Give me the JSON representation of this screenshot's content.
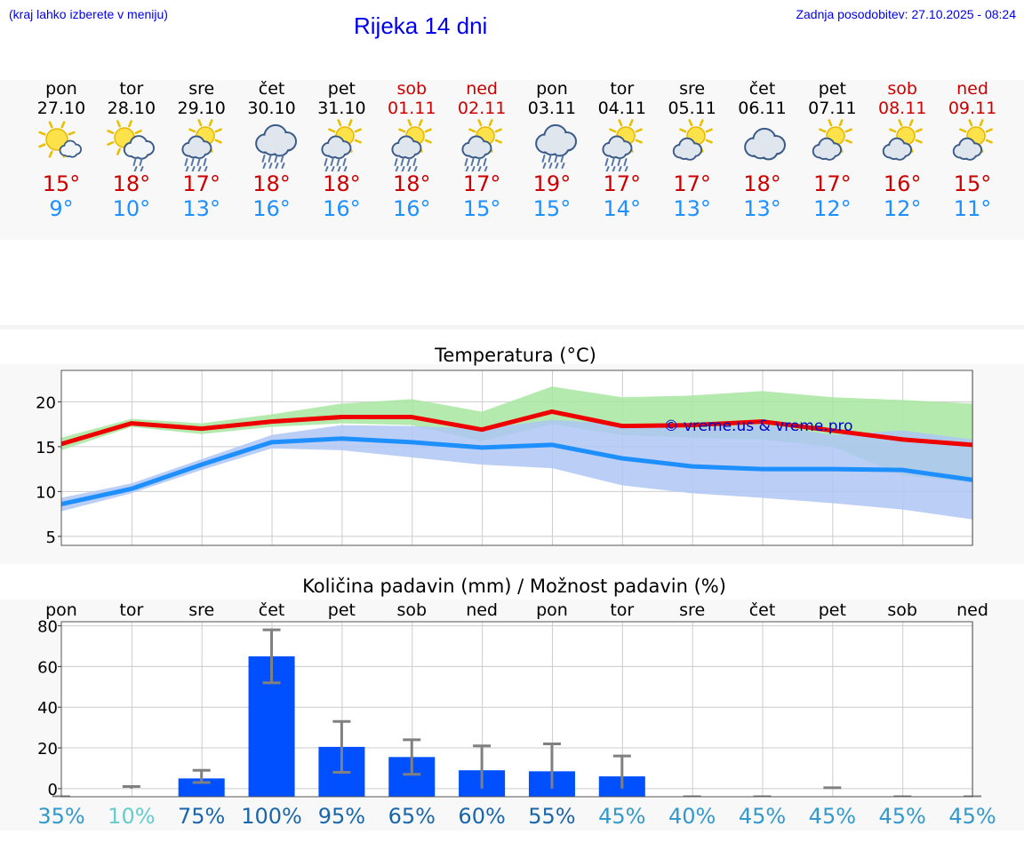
{
  "header": {
    "hint": "(kraj lahko izberete v meniju)",
    "title": "Rijeka 14 dni",
    "updated": "Zadnja posodobitev: 27.10.2025 - 08:24"
  },
  "days": [
    {
      "name": "pon",
      "date": "27.10",
      "icon": "partly-sunny-icon",
      "max": "15°",
      "min": "9°",
      "weekend": false
    },
    {
      "name": "tor",
      "date": "28.10",
      "icon": "sun-cloud-light-rain-icon",
      "max": "18°",
      "min": "10°",
      "weekend": false
    },
    {
      "name": "sre",
      "date": "29.10",
      "icon": "sun-cloud-rain-icon",
      "max": "17°",
      "min": "13°",
      "weekend": false
    },
    {
      "name": "čet",
      "date": "30.10",
      "icon": "cloud-rain-icon",
      "max": "18°",
      "min": "16°",
      "weekend": false
    },
    {
      "name": "pet",
      "date": "31.10",
      "icon": "sun-cloud-rain-icon",
      "max": "18°",
      "min": "16°",
      "weekend": false
    },
    {
      "name": "sob",
      "date": "01.11",
      "icon": "sun-cloud-rain-icon",
      "max": "18°",
      "min": "16°",
      "weekend": true
    },
    {
      "name": "ned",
      "date": "02.11",
      "icon": "sun-cloud-rain-icon",
      "max": "17°",
      "min": "15°",
      "weekend": true
    },
    {
      "name": "pon",
      "date": "03.11",
      "icon": "cloud-rain-icon",
      "max": "19°",
      "min": "15°",
      "weekend": false
    },
    {
      "name": "tor",
      "date": "04.11",
      "icon": "sun-cloud-rain-icon",
      "max": "17°",
      "min": "14°",
      "weekend": false
    },
    {
      "name": "sre",
      "date": "05.11",
      "icon": "partly-cloudy-icon",
      "max": "17°",
      "min": "13°",
      "weekend": false
    },
    {
      "name": "čet",
      "date": "06.11",
      "icon": "cloudy-icon",
      "max": "18°",
      "min": "13°",
      "weekend": false
    },
    {
      "name": "pet",
      "date": "07.11",
      "icon": "partly-cloudy-icon",
      "max": "17°",
      "min": "12°",
      "weekend": false
    },
    {
      "name": "sob",
      "date": "08.11",
      "icon": "partly-cloudy-icon",
      "max": "16°",
      "min": "12°",
      "weekend": true
    },
    {
      "name": "ned",
      "date": "09.11",
      "icon": "partly-cloudy-icon",
      "max": "15°",
      "min": "11°",
      "weekend": true
    }
  ],
  "colors": {
    "max_line": "#ee0000",
    "min_line": "#1e8fff",
    "max_band": "#a8e6a0",
    "min_band": "#aec6f4",
    "overlap_band": "#7cc4a8",
    "bar": "#0050ff",
    "whisker": "#808080"
  },
  "chart_data": [
    {
      "type": "line",
      "title": "Temperatura (°C)",
      "watermark": "© vreme.us & vreme.pro",
      "x": [
        0,
        1,
        2,
        3,
        4,
        5,
        6,
        7,
        8,
        9,
        10,
        11,
        12,
        13
      ],
      "ylim": [
        4,
        23.5
      ],
      "yticks": [
        5,
        10,
        15,
        20
      ],
      "grid": true,
      "series": [
        {
          "name": "max",
          "values": [
            15.3,
            17.6,
            17.0,
            17.8,
            18.3,
            18.3,
            16.9,
            18.9,
            17.3,
            17.4,
            17.8,
            16.8,
            15.8,
            15.2
          ],
          "band_low": [
            14.6,
            17.2,
            16.4,
            17.2,
            17.6,
            17.4,
            15.6,
            17.5,
            16.3,
            16.0,
            15.8,
            15.0,
            11.8,
            11.0
          ],
          "band_high": [
            16.0,
            18.1,
            17.6,
            18.6,
            19.8,
            20.3,
            18.9,
            21.7,
            20.5,
            20.7,
            21.2,
            20.5,
            20.2,
            19.8
          ]
        },
        {
          "name": "min",
          "values": [
            8.6,
            10.3,
            13.0,
            15.5,
            15.9,
            15.5,
            14.9,
            15.2,
            13.7,
            12.8,
            12.5,
            12.5,
            12.4,
            11.3
          ],
          "band_low": [
            7.8,
            9.8,
            12.4,
            14.8,
            14.6,
            13.8,
            13.0,
            12.6,
            10.7,
            9.8,
            9.3,
            8.7,
            8.0,
            6.9
          ],
          "band_high": [
            9.3,
            10.9,
            13.6,
            16.3,
            17.4,
            17.3,
            17.0,
            18.0,
            17.5,
            17.0,
            17.5,
            16.3,
            16.8,
            15.8
          ]
        }
      ]
    },
    {
      "type": "bar",
      "title": "Količina padavin (mm) / Možnost padavin (%)",
      "categories": [
        "pon",
        "tor",
        "sre",
        "čet",
        "pet",
        "sob",
        "ned",
        "pon",
        "tor",
        "sre",
        "čet",
        "pet",
        "sob",
        "ned"
      ],
      "values": [
        0,
        0,
        5,
        65,
        20.5,
        15.5,
        9,
        8.5,
        6,
        0,
        0,
        0,
        0,
        0
      ],
      "error_low": [
        0,
        0,
        3,
        52,
        8,
        7,
        0,
        0,
        0,
        0,
        0,
        0,
        0,
        0
      ],
      "error_high": [
        0,
        1,
        9,
        78,
        33,
        24,
        21,
        22,
        16,
        0,
        0,
        0.4,
        0,
        0
      ],
      "ylim": [
        -4,
        82
      ],
      "yticks": [
        0,
        20,
        40,
        60,
        80
      ],
      "chance_pct": [
        "35%",
        "10%",
        "75%",
        "100%",
        "95%",
        "65%",
        "60%",
        "55%",
        "45%",
        "40%",
        "45%",
        "45%",
        "45%",
        "45%"
      ],
      "chance_colors": [
        "#3399cc",
        "#66cccc",
        "#1a66aa",
        "#1a66aa",
        "#1a66aa",
        "#1a66aa",
        "#1a66aa",
        "#1a66aa",
        "#3399cc",
        "#3399cc",
        "#3399cc",
        "#3399cc",
        "#3399cc",
        "#3399cc"
      ]
    }
  ]
}
